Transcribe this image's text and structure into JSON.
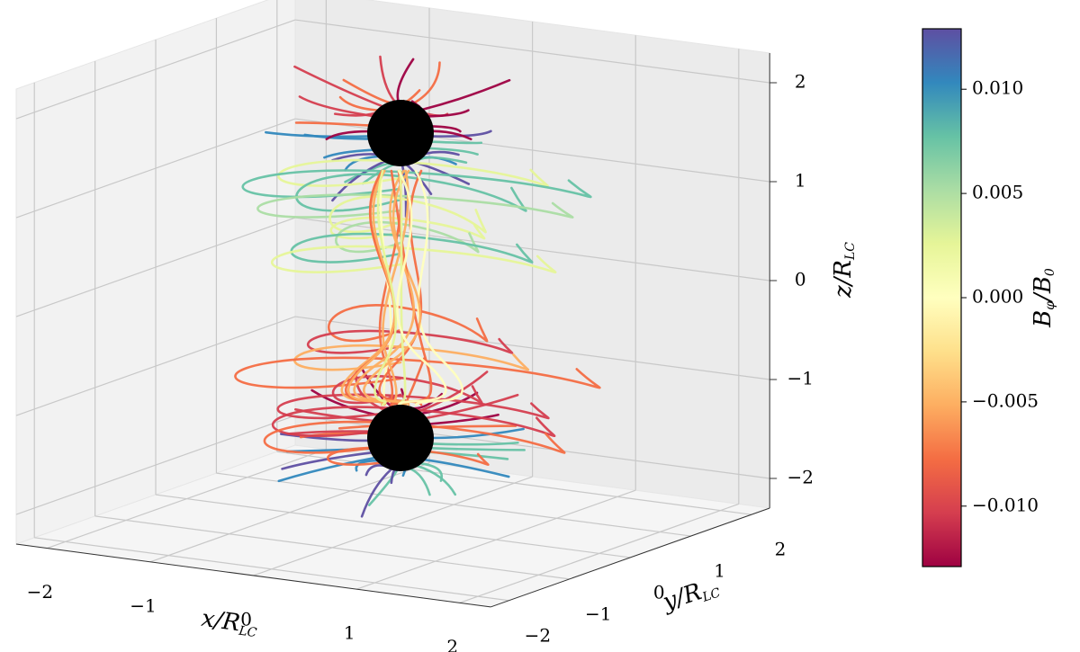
{
  "chart_data": {
    "type": "line3d",
    "xlabel": [
      "x/R",
      "LC"
    ],
    "ylabel": [
      "y/R",
      "LC"
    ],
    "zlabel": [
      "z/R",
      "LC"
    ],
    "xlim": [
      -2.3,
      2.3
    ],
    "ylim": [
      -2.3,
      2.3
    ],
    "zlim": [
      -2.3,
      2.3
    ],
    "xticks": [
      {
        "value": -2,
        "label": "−2"
      },
      {
        "value": -1,
        "label": "−1"
      },
      0,
      1,
      2
    ],
    "yticks": [
      {
        "value": -2,
        "label": "−2"
      },
      {
        "value": -1,
        "label": "−1"
      },
      0,
      1,
      2
    ],
    "zticks": [
      {
        "value": -2,
        "label": "−2"
      },
      {
        "value": -1,
        "label": "−1"
      },
      0,
      1,
      2
    ],
    "grid": true,
    "colorbar": {
      "label": [
        "B",
        "φ",
        "/B",
        "0"
      ],
      "lim": [
        -0.0129,
        0.0129
      ],
      "ticks": [
        {
          "value": -0.01,
          "label": "−0.010"
        },
        {
          "value": -0.005,
          "label": "−0.005"
        },
        {
          "value": 0,
          "label": "0.000"
        },
        {
          "value": 0.005,
          "label": "0.005"
        },
        {
          "value": 0.01,
          "label": "0.010"
        }
      ],
      "colormap": [
        "#9e0142",
        "#d53e4f",
        "#f46d43",
        "#fdae61",
        "#fee08b",
        "#ffffbf",
        "#e6f598",
        "#abdda4",
        "#66c2a5",
        "#3288bd",
        "#5e4fa2"
      ]
    }
  }
}
